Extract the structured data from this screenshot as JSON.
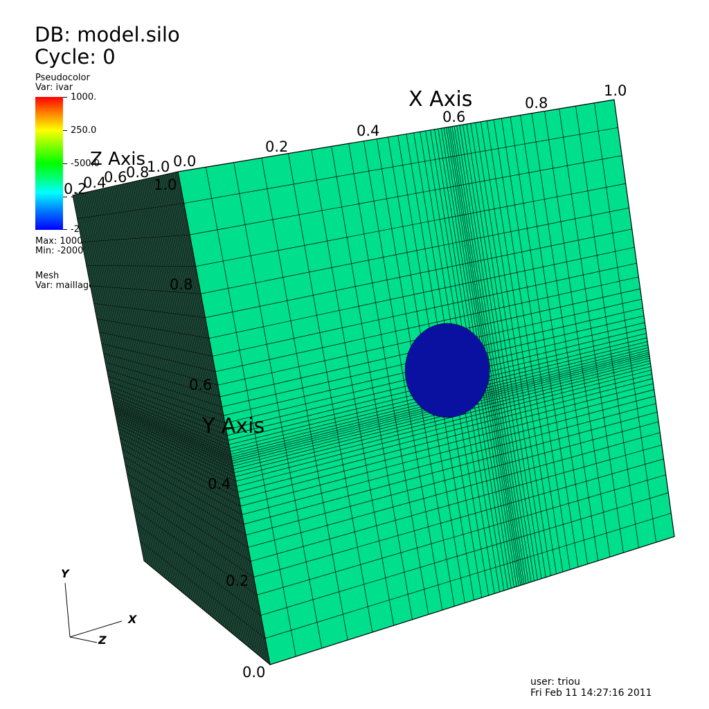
{
  "header": {
    "db": "DB: model.silo",
    "cycle": "Cycle: 0"
  },
  "legend": {
    "plot_type": "Pseudocolor",
    "var": "Var: ivar",
    "ticks": [
      "1000.",
      "250.0",
      "-500.0",
      "-1250.",
      "-2000."
    ],
    "max": "Max:  1000.",
    "min": "Min: -2000.",
    "colors": [
      "#ff0000",
      "#ffff00",
      "#00ff00",
      "#00ffff",
      "#0000ff"
    ]
  },
  "mesh_legend": {
    "plot_type": "Mesh",
    "var": "Var: maillage"
  },
  "axes": {
    "x": {
      "title": "X Axis",
      "ticks": [
        "0.2",
        "0.4",
        "0.6",
        "0.8",
        "1.0"
      ],
      "extra": "0.0"
    },
    "y": {
      "title": "Y Axis",
      "ticks": [
        "0.0",
        "0.2",
        "0.4",
        "0.6",
        "0.8",
        "1.0"
      ]
    },
    "z": {
      "title": "Z Axis",
      "ticks": [
        "0.2",
        "0.4",
        "0.6",
        "0.8",
        "1.0"
      ]
    }
  },
  "triad": {
    "x": "X",
    "y": "Y",
    "z": "Z"
  },
  "footer": {
    "user": "user: triou",
    "date": "Fri Feb 11 14:27:16 2011"
  },
  "colors": {
    "face_front": "#00e08c",
    "face_side": "#1e4b3a",
    "blob": "#0a10a0",
    "grid": "#000000"
  }
}
